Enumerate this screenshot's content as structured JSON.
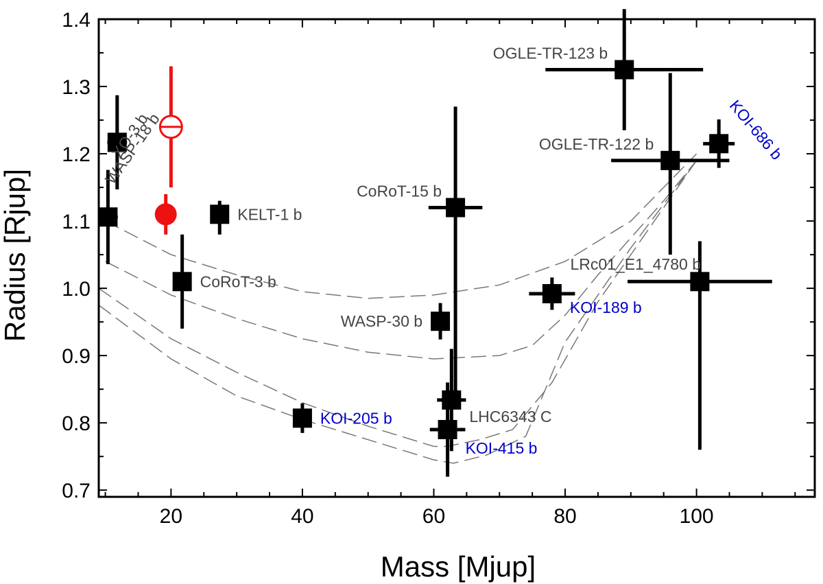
{
  "chart_data": {
    "type": "scatter",
    "title": "",
    "xlabel": "Mass [Mjup]",
    "ylabel": "Radius [Rjup]",
    "xlim": [
      9,
      118
    ],
    "ylim": [
      0.69,
      1.4
    ],
    "xticks": [
      20,
      40,
      60,
      80,
      100
    ],
    "yticks": [
      0.7,
      0.8,
      0.9,
      1.0,
      1.1,
      1.2,
      1.3,
      1.4
    ],
    "ytick_labels": [
      "0.7",
      "0.8",
      "0.9",
      "1.0",
      "1.1",
      "1.2",
      "1.3",
      "1.4"
    ],
    "colors": {
      "black": "#000000",
      "gray_label": "#444444",
      "blue_label": "#0000cc",
      "red": "#ee1111",
      "model_line": "#777777"
    },
    "points": [
      {
        "name": "XO-3 b",
        "mass": 11.8,
        "radius": 1.217,
        "mass_err": 1.5,
        "radius_err": [
          0.07,
          0.07
        ],
        "label_color": "gray",
        "marker": "square"
      },
      {
        "name": "WASP-18 b",
        "mass": 10.4,
        "radius": 1.106,
        "mass_err": 1.5,
        "radius_err": [
          0.07,
          0.07
        ],
        "label_color": "gray",
        "marker": "square"
      },
      {
        "name": "",
        "mass": 20.0,
        "radius": 1.24,
        "mass_err": 0.0,
        "radius_err": [
          0.09,
          0.09
        ],
        "label_color": "red",
        "marker": "open-circle"
      },
      {
        "name": "",
        "mass": 19.2,
        "radius": 1.11,
        "mass_err": 0.8,
        "radius_err": [
          0.03,
          0.03
        ],
        "label_color": "red",
        "marker": "filled-circle"
      },
      {
        "name": "KELT-1 b",
        "mass": 27.4,
        "radius": 1.11,
        "mass_err": 1.0,
        "radius_err": [
          0.03,
          0.02
        ],
        "label_color": "gray",
        "marker": "square"
      },
      {
        "name": "CoRoT-3 b",
        "mass": 21.7,
        "radius": 1.01,
        "mass_err": 1.0,
        "radius_err": [
          0.07,
          0.07
        ],
        "label_color": "gray",
        "marker": "square"
      },
      {
        "name": "CoRoT-15 b",
        "mass": 63.3,
        "radius": 1.12,
        "mass_err": 4.1,
        "radius_err": [
          0.3,
          0.15
        ],
        "label_color": "gray",
        "marker": "square"
      },
      {
        "name": "WASP-30 b",
        "mass": 61.0,
        "radius": 0.951,
        "mass_err": 0.9,
        "radius_err": [
          0.027,
          0.027
        ],
        "label_color": "gray",
        "marker": "square"
      },
      {
        "name": "OGLE-TR-123 b",
        "mass": 89.0,
        "radius": 1.325,
        "mass_err": 12.0,
        "radius_err": [
          0.09,
          0.09
        ],
        "label_color": "gray",
        "marker": "square"
      },
      {
        "name": "OGLE-TR-122 b",
        "mass": 96.0,
        "radius": 1.19,
        "mass_err": 9.0,
        "radius_err": [
          0.14,
          0.13
        ],
        "label_color": "gray",
        "marker": "square"
      },
      {
        "name": "KOI-686 b",
        "mass": 103.4,
        "radius": 1.215,
        "mass_err": 2.4,
        "radius_err": [
          0.036,
          0.036
        ],
        "label_color": "blue",
        "marker": "square"
      },
      {
        "name": "LRc01_E1_4780 b",
        "mass": 100.5,
        "radius": 1.01,
        "mass_err": 11.0,
        "radius_err": [
          0.25,
          0.06
        ],
        "label_color": "gray",
        "marker": "square"
      },
      {
        "name": "KOI-189 b",
        "mass": 78.0,
        "radius": 0.992,
        "mass_err": 3.5,
        "radius_err": [
          0.024,
          0.024
        ],
        "label_color": "blue",
        "marker": "square"
      },
      {
        "name": "LHC6343 C",
        "mass": 62.7,
        "radius": 0.834,
        "mass_err": 2.2,
        "radius_err": [
          0.076,
          0.076
        ],
        "label_color": "gray",
        "marker": "square"
      },
      {
        "name": "KOI-415 b",
        "mass": 62.1,
        "radius": 0.79,
        "mass_err": 2.7,
        "radius_err": [
          0.07,
          0.07
        ],
        "label_color": "blue",
        "marker": "square"
      },
      {
        "name": "KOI-205 b",
        "mass": 40.0,
        "radius": 0.807,
        "mass_err": 1.0,
        "radius_err": [
          0.022,
          0.022
        ],
        "label_color": "blue",
        "marker": "square"
      }
    ],
    "model_curves": [
      {
        "name": "curve-1",
        "x": [
          10,
          20,
          30,
          40,
          50,
          60,
          70,
          80,
          90,
          100
        ],
        "y": [
          1.1,
          1.05,
          1.02,
          0.995,
          0.985,
          0.99,
          1.005,
          1.04,
          1.1,
          1.2
        ]
      },
      {
        "name": "curve-2",
        "x": [
          10,
          20,
          30,
          40,
          50,
          60,
          70,
          75,
          80,
          85,
          95,
          100
        ],
        "y": [
          1.04,
          0.99,
          0.955,
          0.925,
          0.905,
          0.895,
          0.9,
          0.915,
          0.96,
          1.02,
          1.13,
          1.19
        ]
      },
      {
        "name": "curve-3",
        "x": [
          9,
          20,
          30,
          40,
          50,
          60,
          62,
          67,
          72,
          78,
          85,
          95,
          100
        ],
        "y": [
          1.0,
          0.925,
          0.875,
          0.83,
          0.795,
          0.765,
          0.765,
          0.775,
          0.79,
          0.86,
          0.98,
          1.12,
          1.19
        ]
      },
      {
        "name": "curve-4",
        "x": [
          9,
          20,
          30,
          40,
          50,
          60,
          63,
          68,
          74,
          80,
          90,
          100
        ],
        "y": [
          0.975,
          0.895,
          0.84,
          0.805,
          0.775,
          0.745,
          0.74,
          0.752,
          0.78,
          0.92,
          1.06,
          1.19
        ]
      }
    ]
  }
}
